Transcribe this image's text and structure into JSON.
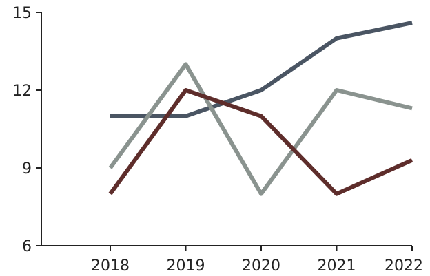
{
  "chart_data": {
    "type": "line",
    "title": "",
    "xlabel": "",
    "ylabel": "",
    "categories": [
      "2018",
      "2019",
      "2020",
      "2021",
      "2022"
    ],
    "ylim": [
      6,
      15
    ],
    "yticks": [
      6,
      9,
      12,
      15
    ],
    "grid": false,
    "legend": "none",
    "series": [
      {
        "color": "#4a5563",
        "values": [
          11,
          11,
          12,
          14,
          14.6
        ]
      },
      {
        "color": "#8a938f",
        "values": [
          9,
          13,
          8,
          12,
          11.3
        ]
      },
      {
        "color": "#5e2d2b",
        "values": [
          8,
          12,
          11,
          8,
          9.3
        ]
      }
    ]
  }
}
